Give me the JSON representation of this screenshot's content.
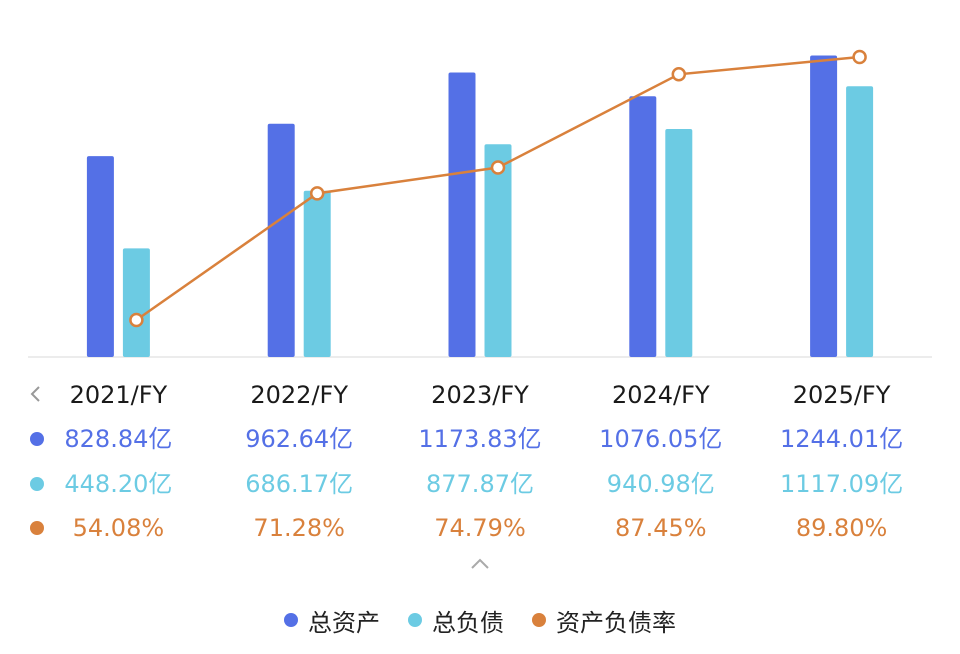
{
  "chart_data": {
    "type": "bar",
    "categories": [
      "2021/FY",
      "2022/FY",
      "2023/FY",
      "2024/FY",
      "2025/FY"
    ],
    "series": [
      {
        "name": "总资产",
        "kind": "bar",
        "color": "#5470e6",
        "values": [
          828.84,
          962.64,
          1173.83,
          1076.05,
          1244.01
        ],
        "labels": [
          "828.84亿",
          "962.64亿",
          "1173.83亿",
          "1076.05亿",
          "1244.01亿"
        ]
      },
      {
        "name": "总负债",
        "kind": "bar",
        "color": "#6ccbe3",
        "values": [
          448.2,
          686.17,
          877.87,
          940.98,
          1117.09
        ],
        "labels": [
          "448.20亿",
          "686.17亿",
          "877.87亿",
          "940.98亿",
          "1117.09亿"
        ]
      },
      {
        "name": "资产负债率",
        "kind": "line",
        "color": "#d9813c",
        "values": [
          54.08,
          71.28,
          74.79,
          87.45,
          89.8
        ],
        "labels": [
          "54.08%",
          "71.28%",
          "74.79%",
          "87.45%",
          "89.80%"
        ]
      }
    ],
    "y_units": "亿",
    "y2_units": "%",
    "grid": false,
    "legend_position": "bottom"
  }
}
